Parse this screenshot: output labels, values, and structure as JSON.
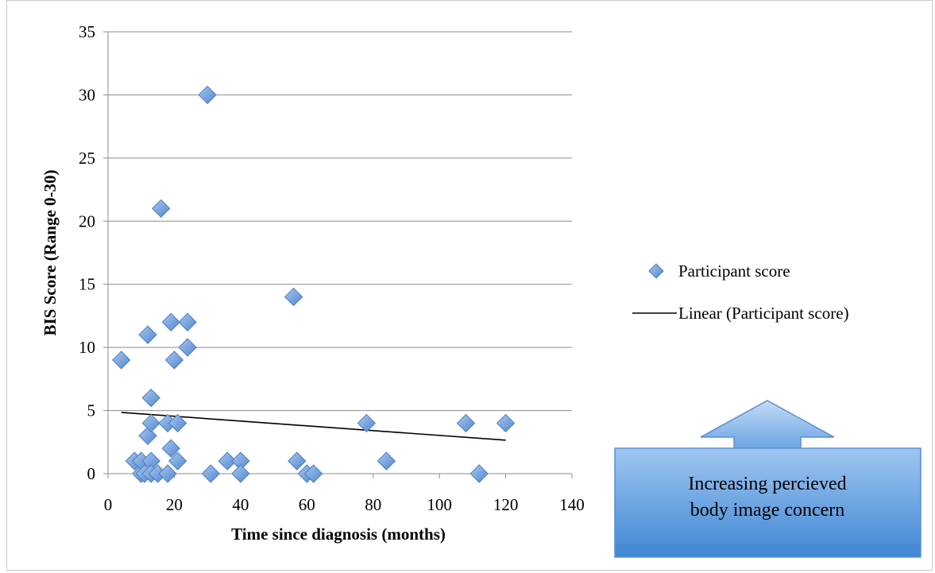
{
  "chart_data": {
    "type": "scatter",
    "xlabel": "Time since diagnosis (months)",
    "ylabel": "BIS Score (Range 0-30)",
    "xlim": [
      0,
      140
    ],
    "ylim": [
      0,
      35
    ],
    "x_ticks": [
      0,
      20,
      40,
      60,
      80,
      100,
      120,
      140
    ],
    "y_ticks": [
      0,
      5,
      10,
      15,
      20,
      25,
      30,
      35
    ],
    "grid": "horizontal",
    "legend_position": "right",
    "series": [
      {
        "name": "Participant score",
        "marker": "diamond",
        "color": "#6f9fdc",
        "points": [
          [
            4,
            9
          ],
          [
            8,
            1
          ],
          [
            10,
            0
          ],
          [
            10,
            1
          ],
          [
            11,
            0
          ],
          [
            12,
            3
          ],
          [
            12,
            11
          ],
          [
            13,
            4
          ],
          [
            13,
            6
          ],
          [
            13,
            1
          ],
          [
            13,
            0
          ],
          [
            15,
            0
          ],
          [
            16,
            21
          ],
          [
            18,
            0
          ],
          [
            18,
            4
          ],
          [
            19,
            12
          ],
          [
            19,
            2
          ],
          [
            20,
            9
          ],
          [
            21,
            1
          ],
          [
            21,
            4
          ],
          [
            24,
            12
          ],
          [
            24,
            10
          ],
          [
            30,
            30
          ],
          [
            31,
            0
          ],
          [
            36,
            1
          ],
          [
            40,
            1
          ],
          [
            40,
            0
          ],
          [
            56,
            14
          ],
          [
            57,
            1
          ],
          [
            60,
            0
          ],
          [
            62,
            0
          ],
          [
            78,
            4
          ],
          [
            84,
            1
          ],
          [
            108,
            4
          ],
          [
            112,
            0
          ],
          [
            120,
            4
          ]
        ]
      }
    ],
    "trendline": {
      "name": "Linear (Participant score)",
      "type": "linear",
      "color": "#000000",
      "start": [
        4,
        4.85
      ],
      "end": [
        120,
        2.65
      ]
    },
    "annotation": {
      "lines": [
        "Increasing percieved",
        "body image concern"
      ],
      "shape": "arrow-up",
      "fill_top": "#b6d4f5",
      "fill_bottom": "#4d8fd6"
    }
  }
}
